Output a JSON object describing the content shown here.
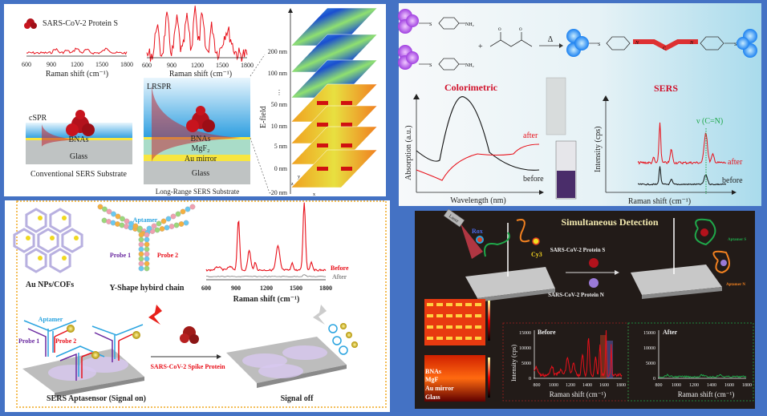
{
  "panel_a": {
    "protein_label": "SARS-CoV-2 Protein S",
    "spectrum1": {
      "ticks": [
        "600",
        "900",
        "1200",
        "1500",
        "1800"
      ],
      "xlabel": "Raman shift (cm⁻¹)"
    },
    "spectrum2": {
      "ticks": [
        "600",
        "900",
        "1200",
        "1500",
        "1800"
      ],
      "xlabel": "Raman shift (cm⁻¹)"
    },
    "conventional": {
      "mode": "cSPR",
      "layer_bnas": "BNAs",
      "layer_glass": "Glass",
      "caption": "Conventional SERS Substrate"
    },
    "long_range": {
      "mode": "LRSPR",
      "layer_bnas": "BNAs",
      "layer_mgf2": "MgF₂",
      "layer_au": "Au mirror",
      "layer_glass": "Glass",
      "caption": "Long-Range SERS Substrate"
    },
    "efield": {
      "axis_label": "E-field",
      "levels": [
        "200 nm",
        "100 nm",
        "⋮",
        "50 nm",
        "10 nm",
        "5 nm",
        "0 nm",
        "-20 nm"
      ],
      "axes": [
        "z",
        "y",
        "x"
      ]
    }
  },
  "panel_b": {
    "reaction": {
      "nh2": "NH₂",
      "s": "S",
      "plus": "+",
      "heat": "Δ",
      "o": "O",
      "n": "N",
      "c": "C"
    },
    "colorimetric": {
      "title": "Colorimetric",
      "ylabel": "Absorption (a.u.)",
      "xlabel": "Wavelength (nm)",
      "after": "after",
      "before": "before"
    },
    "sers": {
      "title": "SERS",
      "ylabel": "Intensity (cps)",
      "xlabel": "Raman shift (cm⁻¹)",
      "marker": "ν (C=N)",
      "after": "after",
      "before": "before"
    }
  },
  "panel_c": {
    "cof_label": "Au NPs/COFs",
    "yshape_label": "Y-Shape hybird chain",
    "aptamer": "Aptamer",
    "probe1": "Probe 1",
    "probe2": "Probe 2",
    "spectrum": {
      "ticks": [
        "600",
        "900",
        "1200",
        "1500",
        "1800"
      ],
      "xlabel": "Raman shift (cm⁻¹)",
      "before": "Before",
      "after": "After"
    },
    "sensor_on": "SERS Aptasensor (Signal on)",
    "target": "SARS-CoV-2 Spike Protein",
    "sensor_off": "Signal off",
    "s": "S"
  },
  "panel_d": {
    "title": "Simultaneous Detection",
    "rox": "Rox",
    "cy3": "Cy3",
    "protein_s": "SARS-CoV-2 Protein S",
    "protein_n": "SARS-CoV-2 Protein N",
    "aptamer_s": "Aptamer S",
    "aptamer_n": "Aptamer N",
    "laser": "Laser",
    "heatmap": {
      "bnas": "BNAs",
      "mgf": "MgF",
      "au": "Au mirror",
      "glass": "Glass"
    },
    "before_plot": {
      "label": "Before",
      "ylabel": "Intensity (cps)",
      "yticks": [
        "15000",
        "10000",
        "5000",
        "0"
      ],
      "xticks": [
        "800",
        "1000",
        "1200",
        "1400",
        "1600",
        "1800"
      ],
      "xlabel": "Raman shift (cm⁻¹)"
    },
    "after_plot": {
      "label": "After",
      "yticks": [
        "15000",
        "10000",
        "5000",
        "0"
      ],
      "xticks": [
        "800",
        "1000",
        "1200",
        "1400",
        "1600",
        "1800"
      ],
      "xlabel": "Raman shift (cm⁻¹)"
    }
  },
  "colors": {
    "frame": "#4472c4",
    "red": "#e8101a",
    "green": "#1fa84a",
    "dark_panel": "#221b18",
    "dashed_border": "#f0a820"
  }
}
